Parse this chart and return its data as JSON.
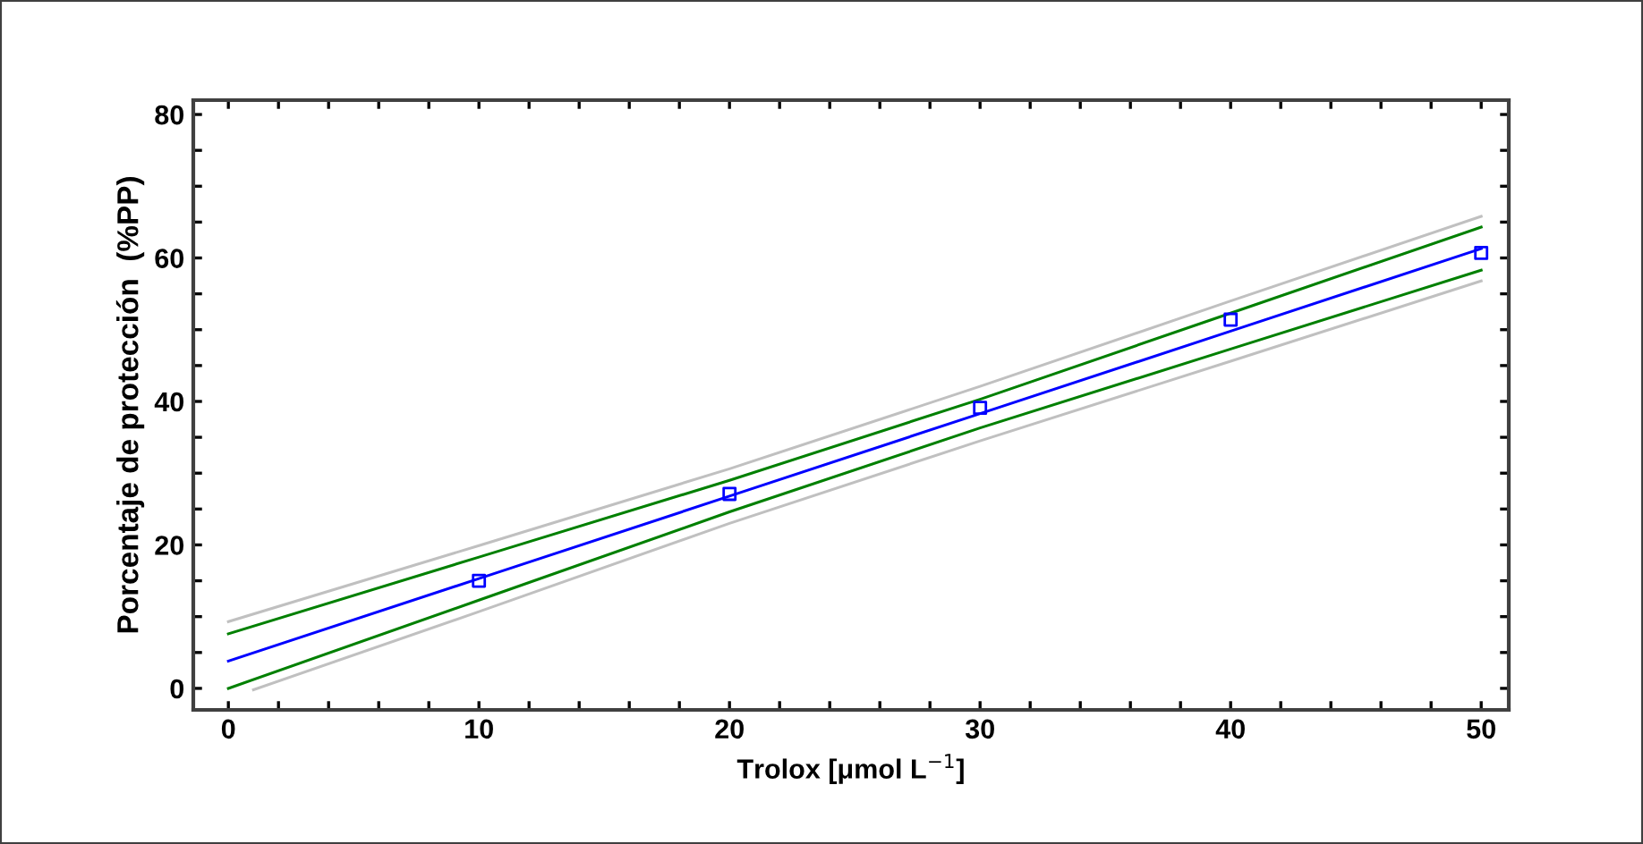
{
  "chart_data": {
    "type": "line",
    "xlabel": "Trolox [μmol L$^{−1}$]",
    "ylabel": "Porcentaje de protección  (%PP)",
    "xlim": [
      -1.4,
      51.1
    ],
    "ylim": [
      -3,
      82
    ],
    "xticks": [
      0,
      {
        "value": 2,
        "label": null
      },
      {
        "value": 4,
        "label": null
      },
      {
        "value": 6,
        "label": null
      },
      {
        "value": 8,
        "label": null
      },
      10,
      {
        "value": 12,
        "label": null
      },
      {
        "value": 14,
        "label": null
      },
      {
        "value": 16,
        "label": null
      },
      {
        "value": 18,
        "label": null
      },
      20,
      {
        "value": 22,
        "label": null
      },
      {
        "value": 24,
        "label": null
      },
      {
        "value": 26,
        "label": null
      },
      {
        "value": 28,
        "label": null
      },
      30,
      {
        "value": 32,
        "label": null
      },
      {
        "value": 34,
        "label": null
      },
      {
        "value": 36,
        "label": null
      },
      {
        "value": 38,
        "label": null
      },
      40,
      {
        "value": 42,
        "label": null
      },
      {
        "value": 44,
        "label": null
      },
      {
        "value": 46,
        "label": null
      },
      {
        "value": 48,
        "label": null
      },
      50
    ],
    "yticks": [
      0,
      {
        "value": 5,
        "label": null
      },
      {
        "value": 10,
        "label": null
      },
      {
        "value": 15,
        "label": null
      },
      20,
      {
        "value": 25,
        "label": null
      },
      {
        "value": 30,
        "label": null
      },
      {
        "value": 35,
        "label": null
      },
      40,
      {
        "value": 45,
        "label": null
      },
      {
        "value": 50,
        "label": null
      },
      {
        "value": 55,
        "label": null
      },
      60,
      {
        "value": 65,
        "label": null
      },
      {
        "value": 70,
        "label": null
      },
      {
        "value": 75,
        "label": null
      },
      80
    ],
    "grid": false,
    "legend": false,
    "series": [
      {
        "color": "#c0c0c0",
        "x": [
          0,
          10,
          20,
          30,
          40,
          50
        ],
        "values": [
          9.3,
          19.9,
          30.6,
          42.1,
          54.0,
          65.8
        ]
      },
      {
        "color": "#c0c0c0",
        "x": [
          1,
          10,
          20,
          30,
          40,
          50
        ],
        "values": [
          -0.2,
          10.7,
          23.0,
          34.5,
          45.6,
          56.8
        ]
      },
      {
        "color": "#008000",
        "x": [
          0,
          10,
          20,
          30,
          40,
          50
        ],
        "values": [
          7.6,
          18.3,
          29.0,
          40.3,
          52.3,
          64.3
        ]
      },
      {
        "color": "#008000",
        "x": [
          0,
          10,
          20,
          30,
          40,
          50
        ],
        "values": [
          0.0,
          12.3,
          24.6,
          36.3,
          47.3,
          58.3
        ]
      },
      {
        "color": "#0000ff",
        "x": [
          0,
          10,
          20,
          30,
          40,
          50
        ],
        "values": [
          3.8,
          15.3,
          26.8,
          38.3,
          49.8,
          61.3
        ]
      },
      {
        "type": "scatter",
        "color": "#0000ff",
        "marker": "square",
        "x": [
          10,
          20,
          30,
          40,
          50
        ],
        "values": [
          15.0,
          27.1,
          39.1,
          51.4,
          60.7
        ]
      }
    ]
  }
}
